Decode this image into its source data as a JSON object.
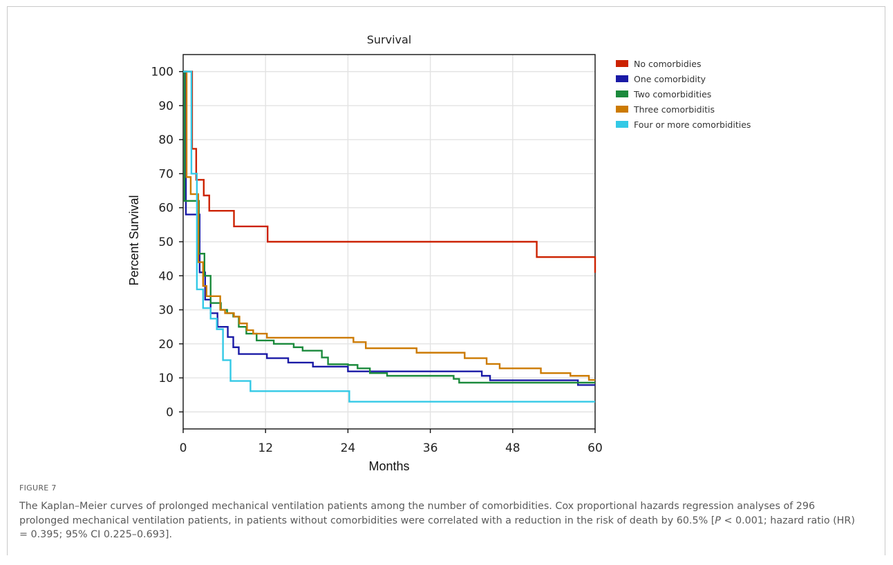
{
  "figure": {
    "label": "FIGURE 7",
    "caption_parts": [
      "The Kaplan–Meier curves of prolonged mechanical ventilation patients among the number of comorbidities. Cox proportional hazards regression analyses of 296 prolonged mechanical ventilation patients, in patients without comorbidities were correlated with a reduction in the risk of death by 60.5% [",
      "P",
      " < 0.001; hazard ratio (HR) = 0.395; 95% CI 0.225–0.693]."
    ]
  },
  "chart_data": {
    "type": "line",
    "subtype": "kaplan-meier-step",
    "title": "Survival",
    "xlabel": "Months",
    "ylabel": "Percent Survival",
    "xlim": [
      0,
      60
    ],
    "ylim": [
      -5,
      105
    ],
    "xticks": [
      0,
      12,
      24,
      36,
      48,
      60
    ],
    "yticks": [
      0,
      10,
      20,
      30,
      40,
      50,
      60,
      70,
      80,
      90,
      100
    ],
    "grid": true,
    "legend_position": "right",
    "series": [
      {
        "name": "No comorbidies",
        "color": "#cc2200",
        "points": [
          [
            0,
            100
          ],
          [
            1.3,
            77.3
          ],
          [
            1.9,
            68.2
          ],
          [
            3,
            63.6
          ],
          [
            3.8,
            59.1
          ],
          [
            7.4,
            54.5
          ],
          [
            12.3,
            50
          ],
          [
            51.5,
            45.5
          ],
          [
            60,
            40.9
          ]
        ]
      },
      {
        "name": "One comorbidity",
        "color": "#1a1aa6",
        "points": [
          [
            0,
            100
          ],
          [
            0.4,
            58
          ],
          [
            1,
            58
          ],
          [
            2.4,
            41
          ],
          [
            3.2,
            33
          ],
          [
            4,
            29
          ],
          [
            5,
            25
          ],
          [
            6.5,
            22
          ],
          [
            7.3,
            19
          ],
          [
            8.1,
            17
          ],
          [
            12.2,
            15.8
          ],
          [
            15.3,
            14.5
          ],
          [
            18.9,
            13.3
          ],
          [
            24,
            11.9
          ],
          [
            27.8,
            11.9
          ],
          [
            31,
            11.9
          ],
          [
            43.5,
            10.6
          ],
          [
            44.7,
            9.3
          ],
          [
            57.5,
            7.9
          ],
          [
            60,
            7.9
          ]
        ]
      },
      {
        "name": "Two comorbidities",
        "color": "#1b8a3c",
        "points": [
          [
            0,
            100
          ],
          [
            0.2,
            62
          ],
          [
            1.1,
            62
          ],
          [
            2.3,
            46.5
          ],
          [
            3.1,
            40
          ],
          [
            4,
            32
          ],
          [
            5.5,
            30
          ],
          [
            6.4,
            29
          ],
          [
            7.3,
            28
          ],
          [
            8.1,
            25
          ],
          [
            9.2,
            23
          ],
          [
            10.7,
            21
          ],
          [
            13.2,
            20
          ],
          [
            16.1,
            19
          ],
          [
            17.4,
            18
          ],
          [
            20.2,
            16
          ],
          [
            21.1,
            14
          ],
          [
            24,
            13.8
          ],
          [
            25.4,
            12.8
          ],
          [
            27.2,
            11.4
          ],
          [
            29.7,
            10.6
          ],
          [
            36.6,
            10.6
          ],
          [
            39.4,
            9.7
          ],
          [
            40.2,
            8.6
          ],
          [
            57.8,
            8.6
          ],
          [
            60,
            8.6
          ]
        ]
      },
      {
        "name": "Three comorbiditis",
        "color": "#cc7a00",
        "points": [
          [
            0,
            100
          ],
          [
            0.5,
            69
          ],
          [
            1.1,
            64
          ],
          [
            2.2,
            44
          ],
          [
            2.9,
            37
          ],
          [
            3.4,
            34
          ],
          [
            5.4,
            30
          ],
          [
            6.1,
            29
          ],
          [
            7.4,
            28
          ],
          [
            8.2,
            26
          ],
          [
            9.3,
            24
          ],
          [
            10.2,
            23
          ],
          [
            12.2,
            21.8
          ],
          [
            23.7,
            21.8
          ],
          [
            24.8,
            20.5
          ],
          [
            26.6,
            18.7
          ],
          [
            32.3,
            18.7
          ],
          [
            34,
            17.4
          ],
          [
            41,
            15.8
          ],
          [
            44.2,
            14.1
          ],
          [
            46.1,
            12.8
          ],
          [
            49,
            12.8
          ],
          [
            52.1,
            11.4
          ],
          [
            56.4,
            10.6
          ],
          [
            59.1,
            9.4
          ],
          [
            60,
            9.4
          ]
        ]
      },
      {
        "name": "Four or more comorbidities",
        "color": "#33c9e6",
        "points": [
          [
            0,
            100
          ],
          [
            1.2,
            70
          ],
          [
            2,
            36
          ],
          [
            2.9,
            30.5
          ],
          [
            4,
            27.4
          ],
          [
            4.9,
            24.3
          ],
          [
            5.8,
            15.2
          ],
          [
            6.9,
            9.1
          ],
          [
            9.8,
            6.1
          ],
          [
            24.2,
            3
          ],
          [
            60,
            3
          ]
        ]
      }
    ]
  }
}
